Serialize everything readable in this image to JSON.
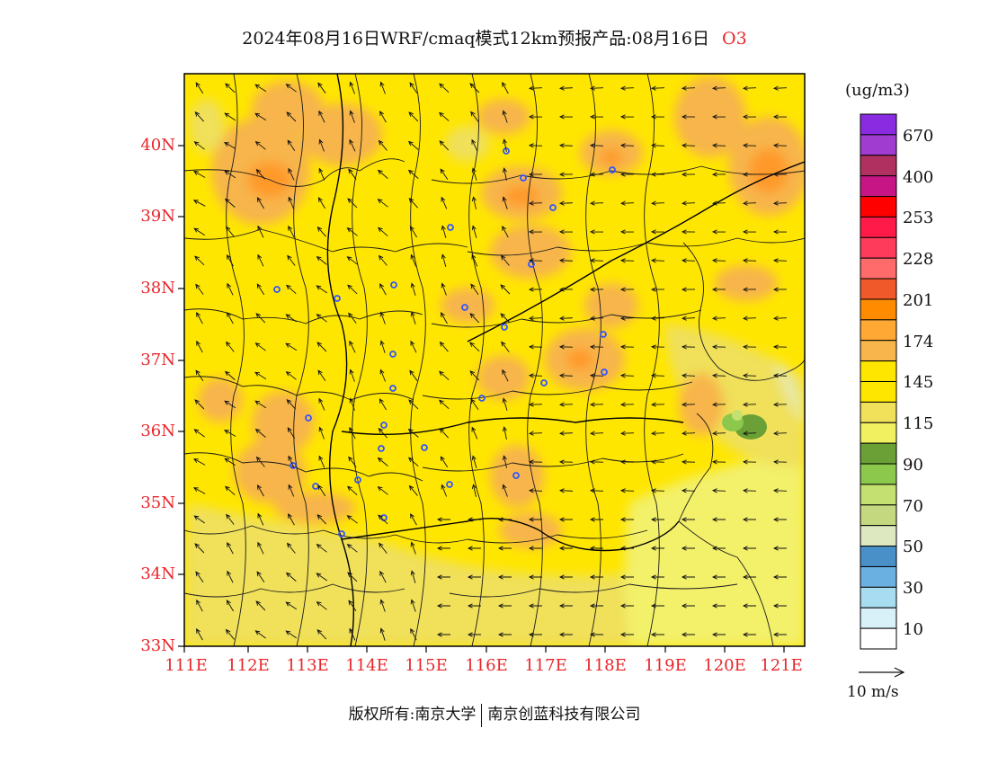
{
  "header": {
    "title": "2024年08月16日WRF/cmaq模式12km预报产品:08月16日",
    "species": "O3"
  },
  "map": {
    "lat_labels": [
      "40N",
      "39N",
      "38N",
      "37N",
      "36N",
      "35N",
      "34N",
      "33N"
    ],
    "lon_labels": [
      "111E",
      "112E",
      "113E",
      "114E",
      "115E",
      "116E",
      "117E",
      "118E",
      "119E",
      "120E",
      "121E"
    ],
    "lon_range": [
      111,
      121.4
    ],
    "lat_range": [
      33,
      40.95
    ],
    "base_color": "#ffe600",
    "city_marker_color": "#3355ff"
  },
  "legend": {
    "unit": "(ug/m3)",
    "colors": [
      "#8a2be2",
      "#a03cd0",
      "#b03060",
      "#c71585",
      "#ff0000",
      "#ff1a4a",
      "#ff3b5c",
      "#ff6a6a",
      "#f05a2a",
      "#ff8c00",
      "#ffa833",
      "#f7b54b",
      "#ffe600",
      "#ffe600",
      "#f0e05a",
      "#f0f060",
      "#6aa035",
      "#8cc84b",
      "#c4e070",
      "#c4d880",
      "#dde8c0",
      "#4a90c8",
      "#6ab0e0",
      "#a8dcf0",
      "#d8f0f8",
      "#ffffff"
    ],
    "labels": [
      "670",
      "400",
      "253",
      "228",
      "201",
      "174",
      "145",
      "115",
      "90",
      "70",
      "50",
      "30",
      "10"
    ]
  },
  "vector": {
    "label": "10 m/s"
  },
  "footer": {
    "copyright_left": "版权所有:南京大学",
    "copyright_right": "南京创蓝科技有限公司"
  }
}
